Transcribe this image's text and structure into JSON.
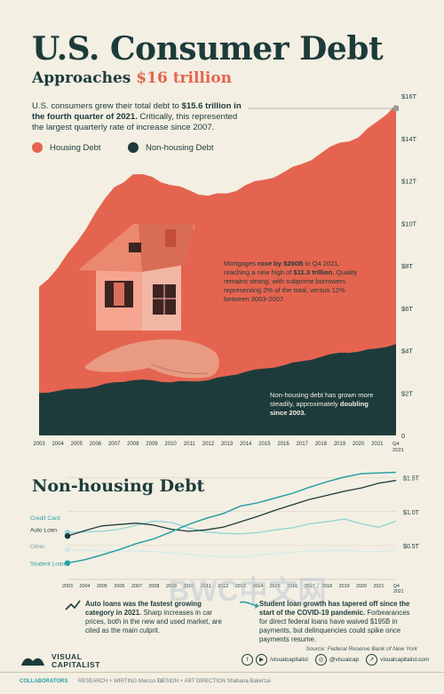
{
  "header": {
    "title": "U.S. Consumer Debt",
    "subtitle_prefix": "Approaches ",
    "subtitle_highlight": "$16 trillion",
    "intro_1": "U.S. consumers grew their total debt to ",
    "intro_bold": "$15.6 trillion in the fourth quarter of 2021.",
    "intro_2": " Critically, this represented the largest quarterly rate of increase since 2007."
  },
  "legend": {
    "housing": "Housing Debt",
    "nonhousing": "Non-housing Debt"
  },
  "colors": {
    "housing": "#e5644f",
    "nonhousing": "#1e3b3b",
    "background": "#f3efe3",
    "teal": "#2a9fa5",
    "light_teal": "#8fd3d6",
    "dark": "#1d3b3b"
  },
  "annotations": {
    "mortgage_1": "Mortgages ",
    "mortgage_bold1": "rose by $260B",
    "mortgage_2": " in Q4 2021, reaching a new high of ",
    "mortgage_bold2": "$11.3 trillion.",
    "mortgage_3": " Quality remains strong, with subprime borrowers representing 2% of the total, versus 12% between 2003-2007.",
    "nonhousing_1": "Non-housing debt has grown more steadily, approximately ",
    "nonhousing_bold": "doubling since 2003."
  },
  "chart_data": [
    {
      "type": "area",
      "x": [
        "2003",
        "2004",
        "2005",
        "2006",
        "2007",
        "2008",
        "2009",
        "2010",
        "2011",
        "2012",
        "2013",
        "2014",
        "2015",
        "2016",
        "2017",
        "2018",
        "2019",
        "2020",
        "2021",
        "Q4 2021"
      ],
      "x_tick_labels": [
        "2003",
        "2004",
        "2005",
        "2006",
        "2007",
        "2008",
        "2009",
        "2010",
        "2011",
        "2012",
        "2013",
        "2014",
        "2015",
        "2016",
        "2017",
        "2018",
        "2019",
        "2020",
        "2021",
        "Q4 2021"
      ],
      "series": [
        {
          "name": "Non-housing Debt",
          "values": [
            2.0,
            2.1,
            2.2,
            2.3,
            2.5,
            2.6,
            2.6,
            2.5,
            2.55,
            2.6,
            2.8,
            3.0,
            3.15,
            3.3,
            3.5,
            3.7,
            3.9,
            3.95,
            4.1,
            4.3
          ]
        },
        {
          "name": "Housing Debt",
          "values": [
            5.0,
            5.8,
            6.9,
            8.2,
            9.2,
            9.7,
            9.6,
            9.3,
            9.0,
            8.7,
            8.6,
            8.8,
            8.9,
            9.1,
            9.3,
            9.6,
            9.9,
            10.1,
            10.7,
            11.3
          ]
        }
      ],
      "total_end": 15.6,
      "y_ticks": [
        "0",
        "$2T",
        "$4T",
        "$6T",
        "$8T",
        "$10T",
        "$12T",
        "$14T",
        "$16T"
      ],
      "ylim": [
        0,
        16
      ],
      "stacked": true
    },
    {
      "type": "line",
      "title": "Non-housing Debt",
      "x_tick_labels": [
        "2003",
        "2004",
        "2005",
        "2006",
        "2007",
        "2008",
        "2009",
        "2010",
        "2011",
        "2012",
        "2013",
        "2014",
        "2015",
        "2016",
        "2017",
        "2018",
        "2019",
        "2020",
        "2021",
        "Q4 2021"
      ],
      "series": [
        {
          "name": "Credit Card",
          "values": [
            0.69,
            0.7,
            0.71,
            0.74,
            0.8,
            0.86,
            0.84,
            0.76,
            0.7,
            0.68,
            0.67,
            0.69,
            0.73,
            0.76,
            0.82,
            0.85,
            0.89,
            0.82,
            0.77,
            0.86
          ]
        },
        {
          "name": "Auto Loan",
          "values": [
            0.64,
            0.72,
            0.79,
            0.81,
            0.83,
            0.8,
            0.74,
            0.71,
            0.73,
            0.77,
            0.85,
            0.93,
            1.02,
            1.1,
            1.18,
            1.24,
            1.3,
            1.35,
            1.42,
            1.46
          ]
        },
        {
          "name": "Other",
          "values": [
            0.44,
            0.43,
            0.42,
            0.42,
            0.42,
            0.41,
            0.39,
            0.37,
            0.35,
            0.33,
            0.33,
            0.36,
            0.38,
            0.4,
            0.42,
            0.42,
            0.43,
            0.41,
            0.41,
            0.43
          ]
        },
        {
          "name": "Student Loan",
          "values": [
            0.24,
            0.29,
            0.36,
            0.44,
            0.53,
            0.6,
            0.7,
            0.81,
            0.9,
            0.97,
            1.08,
            1.13,
            1.2,
            1.27,
            1.36,
            1.44,
            1.51,
            1.56,
            1.57,
            1.58
          ]
        }
      ],
      "y_ticks": [
        "$0.5T",
        "$1.0T",
        "$1.5T"
      ],
      "ylim": [
        0,
        1.6
      ]
    }
  ],
  "notes": {
    "auto_bold": "Auto loans was the fastest growing category in 2021.",
    "auto_rest": " Sharp increases in car prices, both in the new and used market, are cited as the main culprit.",
    "student_bold": "Student loan growth has tapered off since the start of the COVID-19 pandemic.",
    "student_rest": " Forbearances for direct federal loans have waived $195B in payments, but delinquencies could spike once payments resume."
  },
  "footer": {
    "source": "Source: Federal Reserve Bank of New York",
    "brand_1": "VISUAL",
    "brand_2": "CAPITALIST",
    "social_1": "/visualcapitalist",
    "social_2": "@visualcap",
    "social_3": "visualcapitalist.com",
    "collab": "COLLABORATORS",
    "credits_1": "RESEARCH + WRITING Marcus Lu",
    "credits_2": "DESIGN + ART DIRECTION Shabana Bakerzai"
  },
  "watermark": "BWC中文网"
}
